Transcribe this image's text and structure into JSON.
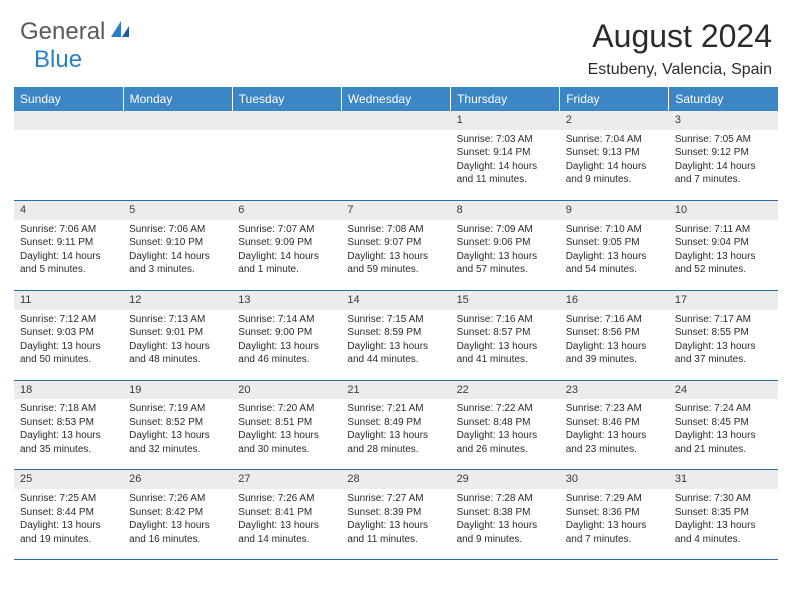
{
  "brand": {
    "word1": "General",
    "word2": "Blue"
  },
  "title": "August 2024",
  "location": "Estubeny, Valencia, Spain",
  "colors": {
    "header_bg": "#3d86c6",
    "accent": "#2d7fc4",
    "row_border": "#2d6ba3",
    "daynum_bg": "#ececec",
    "text": "#2b2b2b"
  },
  "fonts": {
    "title_size": 32,
    "location_size": 16,
    "dow_size": 12,
    "cell_size": 10
  },
  "dow": [
    "Sunday",
    "Monday",
    "Tuesday",
    "Wednesday",
    "Thursday",
    "Friday",
    "Saturday"
  ],
  "weeks": [
    [
      null,
      null,
      null,
      null,
      {
        "n": "1",
        "sr": "7:03 AM",
        "ss": "9:14 PM",
        "dl": "14 hours and 11 minutes."
      },
      {
        "n": "2",
        "sr": "7:04 AM",
        "ss": "9:13 PM",
        "dl": "14 hours and 9 minutes."
      },
      {
        "n": "3",
        "sr": "7:05 AM",
        "ss": "9:12 PM",
        "dl": "14 hours and 7 minutes."
      }
    ],
    [
      {
        "n": "4",
        "sr": "7:06 AM",
        "ss": "9:11 PM",
        "dl": "14 hours and 5 minutes."
      },
      {
        "n": "5",
        "sr": "7:06 AM",
        "ss": "9:10 PM",
        "dl": "14 hours and 3 minutes."
      },
      {
        "n": "6",
        "sr": "7:07 AM",
        "ss": "9:09 PM",
        "dl": "14 hours and 1 minute."
      },
      {
        "n": "7",
        "sr": "7:08 AM",
        "ss": "9:07 PM",
        "dl": "13 hours and 59 minutes."
      },
      {
        "n": "8",
        "sr": "7:09 AM",
        "ss": "9:06 PM",
        "dl": "13 hours and 57 minutes."
      },
      {
        "n": "9",
        "sr": "7:10 AM",
        "ss": "9:05 PM",
        "dl": "13 hours and 54 minutes."
      },
      {
        "n": "10",
        "sr": "7:11 AM",
        "ss": "9:04 PM",
        "dl": "13 hours and 52 minutes."
      }
    ],
    [
      {
        "n": "11",
        "sr": "7:12 AM",
        "ss": "9:03 PM",
        "dl": "13 hours and 50 minutes."
      },
      {
        "n": "12",
        "sr": "7:13 AM",
        "ss": "9:01 PM",
        "dl": "13 hours and 48 minutes."
      },
      {
        "n": "13",
        "sr": "7:14 AM",
        "ss": "9:00 PM",
        "dl": "13 hours and 46 minutes."
      },
      {
        "n": "14",
        "sr": "7:15 AM",
        "ss": "8:59 PM",
        "dl": "13 hours and 44 minutes."
      },
      {
        "n": "15",
        "sr": "7:16 AM",
        "ss": "8:57 PM",
        "dl": "13 hours and 41 minutes."
      },
      {
        "n": "16",
        "sr": "7:16 AM",
        "ss": "8:56 PM",
        "dl": "13 hours and 39 minutes."
      },
      {
        "n": "17",
        "sr": "7:17 AM",
        "ss": "8:55 PM",
        "dl": "13 hours and 37 minutes."
      }
    ],
    [
      {
        "n": "18",
        "sr": "7:18 AM",
        "ss": "8:53 PM",
        "dl": "13 hours and 35 minutes."
      },
      {
        "n": "19",
        "sr": "7:19 AM",
        "ss": "8:52 PM",
        "dl": "13 hours and 32 minutes."
      },
      {
        "n": "20",
        "sr": "7:20 AM",
        "ss": "8:51 PM",
        "dl": "13 hours and 30 minutes."
      },
      {
        "n": "21",
        "sr": "7:21 AM",
        "ss": "8:49 PM",
        "dl": "13 hours and 28 minutes."
      },
      {
        "n": "22",
        "sr": "7:22 AM",
        "ss": "8:48 PM",
        "dl": "13 hours and 26 minutes."
      },
      {
        "n": "23",
        "sr": "7:23 AM",
        "ss": "8:46 PM",
        "dl": "13 hours and 23 minutes."
      },
      {
        "n": "24",
        "sr": "7:24 AM",
        "ss": "8:45 PM",
        "dl": "13 hours and 21 minutes."
      }
    ],
    [
      {
        "n": "25",
        "sr": "7:25 AM",
        "ss": "8:44 PM",
        "dl": "13 hours and 19 minutes."
      },
      {
        "n": "26",
        "sr": "7:26 AM",
        "ss": "8:42 PM",
        "dl": "13 hours and 16 minutes."
      },
      {
        "n": "27",
        "sr": "7:26 AM",
        "ss": "8:41 PM",
        "dl": "13 hours and 14 minutes."
      },
      {
        "n": "28",
        "sr": "7:27 AM",
        "ss": "8:39 PM",
        "dl": "13 hours and 11 minutes."
      },
      {
        "n": "29",
        "sr": "7:28 AM",
        "ss": "8:38 PM",
        "dl": "13 hours and 9 minutes."
      },
      {
        "n": "30",
        "sr": "7:29 AM",
        "ss": "8:36 PM",
        "dl": "13 hours and 7 minutes."
      },
      {
        "n": "31",
        "sr": "7:30 AM",
        "ss": "8:35 PM",
        "dl": "13 hours and 4 minutes."
      }
    ]
  ],
  "labels": {
    "sunrise": "Sunrise: ",
    "sunset": "Sunset: ",
    "daylight": "Daylight: "
  }
}
